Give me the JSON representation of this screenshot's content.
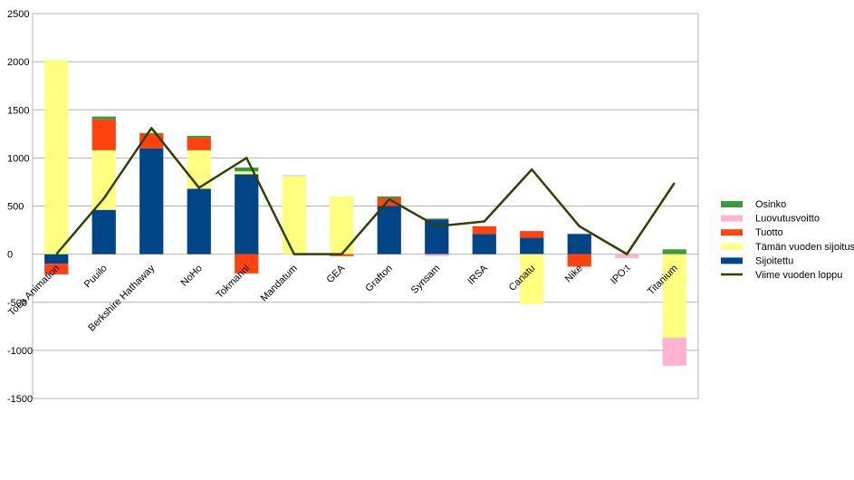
{
  "chart_data": {
    "type": "bar",
    "stacked": true,
    "categories": [
      "Toca Animation",
      "Puuilo",
      "Berkshire Hathaway",
      "NoHo",
      "Tokmanni",
      "Mandatum",
      "GEA",
      "Grafton",
      "Synsam",
      "IRSA",
      "Canatu",
      "Nike",
      "IPO:t",
      "Titanium"
    ],
    "ylim": [
      -1500,
      2500
    ],
    "yticks": [
      -1500,
      -1000,
      -500,
      0,
      500,
      1000,
      1500,
      2000,
      2500
    ],
    "grid": true,
    "legend_position": "right",
    "series": [
      {
        "name": "Sijoitettu",
        "kind": "bar",
        "color": "#004586",
        "values": [
          -100,
          460,
          1100,
          680,
          830,
          0,
          0,
          500,
          360,
          210,
          170,
          210,
          0,
          0
        ]
      },
      {
        "name": "Tämän vuoden sijoitus",
        "kind": "bar",
        "color": "#ffff80",
        "values": [
          2020,
          620,
          0,
          400,
          30,
          810,
          600,
          0,
          0,
          0,
          -520,
          0,
          0,
          -870
        ]
      },
      {
        "name": "Tuotto",
        "kind": "bar",
        "color": "#ff420e",
        "values": [
          -110,
          320,
          150,
          130,
          -200,
          0,
          -20,
          80,
          0,
          80,
          70,
          -130,
          0,
          0
        ]
      },
      {
        "name": "Luovutusvoitto",
        "kind": "bar",
        "color": "#ffb3d1",
        "values": [
          0,
          0,
          0,
          0,
          0,
          10,
          0,
          0,
          -20,
          0,
          0,
          0,
          -40,
          -290
        ]
      },
      {
        "name": "Osinko",
        "kind": "bar",
        "color": "#3b9a3b",
        "values": [
          0,
          30,
          10,
          20,
          40,
          0,
          0,
          20,
          10,
          0,
          0,
          0,
          0,
          50
        ]
      },
      {
        "name": "Viime vuoden loppu",
        "kind": "line",
        "color": "#314004",
        "values": [
          0,
          580,
          1310,
          690,
          1000,
          0,
          0,
          570,
          290,
          340,
          880,
          290,
          0,
          740
        ]
      }
    ],
    "legend_order": [
      "Osinko",
      "Luovutusvoitto",
      "Tuotto",
      "Tämän vuoden sijoitus",
      "Sijoitettu",
      "Viime vuoden loppu"
    ]
  }
}
